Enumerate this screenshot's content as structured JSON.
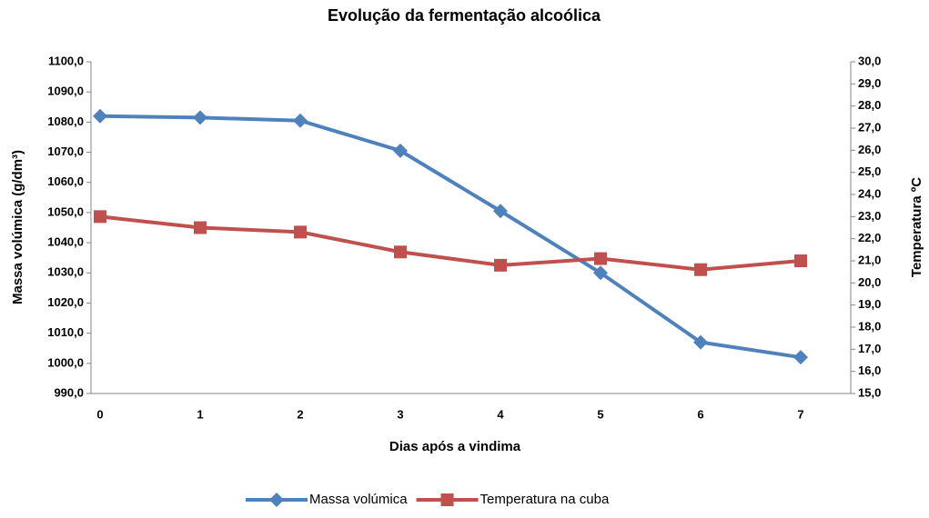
{
  "chart_data": {
    "type": "line",
    "title": "Evolução da fermentação alcoólica",
    "x_label": "Dias após a vindima",
    "y_label": "Massa volúmica (g/dm³)",
    "y2_label": "Temperatura ºC",
    "categories": [
      "0",
      "1",
      "2",
      "3",
      "4",
      "5",
      "6",
      "7"
    ],
    "series": [
      {
        "name": "Massa volúmica",
        "color": "#4f81bd",
        "marker": "diamond",
        "values": [
          1082,
          1081.5,
          1080.5,
          1070.5,
          1050.5,
          1030,
          1007,
          1002
        ]
      },
      {
        "name": "Temperatura na cuba",
        "color": "#c0504d",
        "marker": "square",
        "axis": "y2",
        "values": [
          23.0,
          22.5,
          22.3,
          21.4,
          20.8,
          21.1,
          20.6,
          21.0
        ]
      }
    ],
    "ylim": [
      990,
      1100
    ],
    "yticks": [
      {
        "value": 990,
        "label": "990,0"
      },
      {
        "value": 1000,
        "label": "1000,0"
      },
      {
        "value": 1010,
        "label": "1010,0"
      },
      {
        "value": 1020,
        "label": "1020,0"
      },
      {
        "value": 1030,
        "label": "1030,0"
      },
      {
        "value": 1040,
        "label": "1040,0"
      },
      {
        "value": 1050,
        "label": "1050,0"
      },
      {
        "value": 1060,
        "label": "1060,0"
      },
      {
        "value": 1070,
        "label": "1070,0"
      },
      {
        "value": 1080,
        "label": "1080,0"
      },
      {
        "value": 1090,
        "label": "1090,0"
      },
      {
        "value": 1100,
        "label": "1100,0"
      }
    ],
    "y2lim": [
      15,
      30
    ],
    "y2ticks": [
      {
        "value": 15,
        "label": "15,0"
      },
      {
        "value": 16,
        "label": "16,0"
      },
      {
        "value": 17,
        "label": "17,0"
      },
      {
        "value": 18,
        "label": "18,0"
      },
      {
        "value": 19,
        "label": "19,0"
      },
      {
        "value": 20,
        "label": "20,0"
      },
      {
        "value": 21,
        "label": "21,0"
      },
      {
        "value": 22,
        "label": "22,0"
      },
      {
        "value": 23,
        "label": "23,0"
      },
      {
        "value": 24,
        "label": "24,0"
      },
      {
        "value": 25,
        "label": "25,0"
      },
      {
        "value": 26,
        "label": "26,0"
      },
      {
        "value": 27,
        "label": "27,0"
      },
      {
        "value": 28,
        "label": "28,0"
      },
      {
        "value": 29,
        "label": "29,0"
      },
      {
        "value": 30,
        "label": "30,0"
      }
    ],
    "legend": "bottom",
    "grid": false
  }
}
